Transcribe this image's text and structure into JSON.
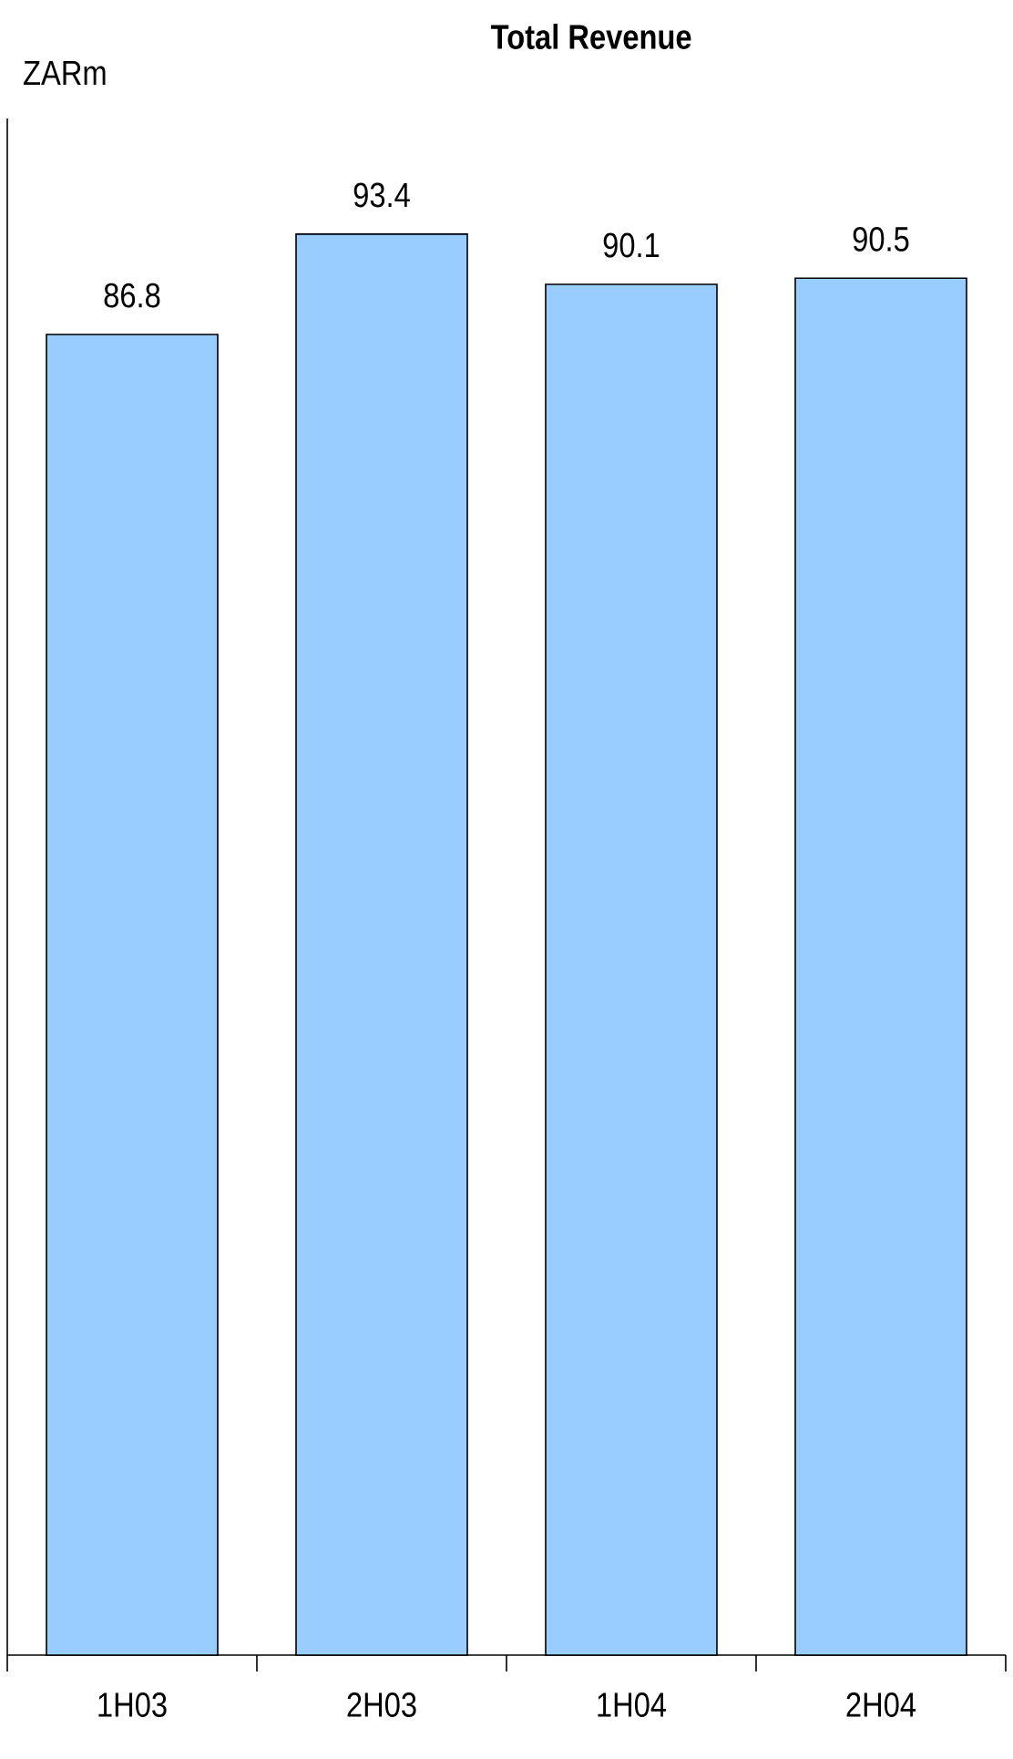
{
  "chart_data": {
    "type": "bar",
    "title": "Total Revenue",
    "ylabel": "ZARm",
    "categories": [
      "1H03",
      "2H03",
      "1H04",
      "2H04"
    ],
    "values": [
      86.8,
      93.4,
      90.1,
      90.5
    ],
    "color": "#99ccff",
    "ylim": [
      0,
      101
    ],
    "data_labels": true
  }
}
